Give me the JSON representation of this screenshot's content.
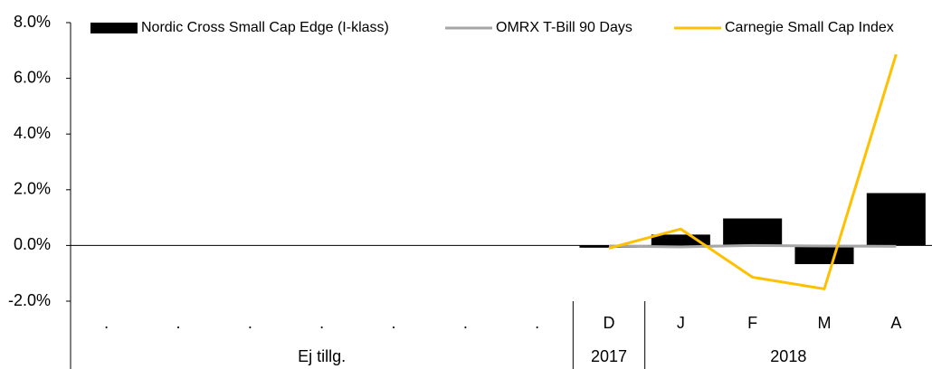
{
  "chart_data": {
    "type": "bar_line",
    "categories": [
      ".",
      ".",
      ".",
      ".",
      ".",
      ".",
      ".",
      "D",
      "J",
      "F",
      "M",
      "A"
    ],
    "category_groups": [
      {
        "label": "Ej tillg.",
        "count": 7
      },
      {
        "label": "2017",
        "count": 1
      },
      {
        "label": "2018",
        "count": 4
      }
    ],
    "series": [
      {
        "name": "Nordic Cross Small Cap Edge (I-klass)",
        "kind": "bar",
        "color": "#000000",
        "values": [
          null,
          null,
          null,
          null,
          null,
          null,
          null,
          -0.08,
          0.39,
          0.97,
          -0.67,
          1.88
        ]
      },
      {
        "name": "OMRX T-Bill 90 Days",
        "kind": "line",
        "color": "#a6a6a6",
        "values": [
          null,
          null,
          null,
          null,
          null,
          null,
          null,
          -0.02,
          -0.05,
          0.0,
          -0.02,
          -0.03
        ]
      },
      {
        "name": "Carnegie Small Cap Index",
        "kind": "line",
        "color": "#ffc000",
        "values": [
          null,
          null,
          null,
          null,
          null,
          null,
          null,
          -0.1,
          0.59,
          -1.14,
          -1.56,
          6.86
        ]
      }
    ],
    "ylim": [
      -2,
      8
    ],
    "yticks": [
      {
        "value": -2,
        "label": "-2.0%"
      },
      {
        "value": 0,
        "label": "0.0%"
      },
      {
        "value": 2,
        "label": "2.0%"
      },
      {
        "value": 4,
        "label": "4.0%"
      },
      {
        "value": 6,
        "label": "6.0%"
      },
      {
        "value": 8,
        "label": "8.0%"
      }
    ],
    "legend": "top"
  }
}
